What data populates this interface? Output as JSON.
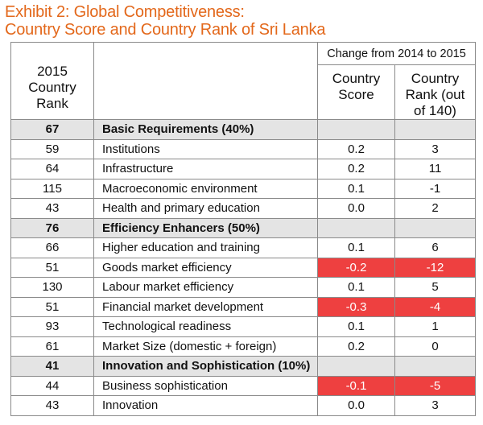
{
  "title": {
    "line1": "Exhibit 2: Global Competitiveness:",
    "line2": "Country Score and Country Rank of Sri Lanka"
  },
  "table": {
    "header": {
      "rank": [
        "2015",
        "Country",
        "Rank"
      ],
      "change_group": "Change from 2014 to 2015",
      "score": [
        "Country",
        "Score"
      ],
      "country_rank": [
        "Country",
        "Rank (out",
        "of 140)"
      ]
    },
    "rows": [
      {
        "rank": "67",
        "name": "Basic Requirements (40%)",
        "score": "",
        "change": "",
        "section": true
      },
      {
        "rank": "59",
        "name": "Institutions",
        "score": "0.2",
        "change": "3"
      },
      {
        "rank": "64",
        "name": "Infrastructure",
        "score": "0.2",
        "change": "11"
      },
      {
        "rank": "115",
        "name": "Macroeconomic environment",
        "score": "0.1",
        "change": "-1"
      },
      {
        "rank": "43",
        "name": "Health and primary education",
        "score": "0.0",
        "change": "2"
      },
      {
        "rank": "76",
        "name": "Efficiency Enhancers (50%)",
        "score": "",
        "change": "",
        "section": true
      },
      {
        "rank": "66",
        "name": "Higher education and training",
        "score": "0.1",
        "change": "6"
      },
      {
        "rank": "51",
        "name": "Goods market efficiency",
        "score": "-0.2",
        "change": "-12",
        "highlight": true
      },
      {
        "rank": "130",
        "name": "Labour market efficiency",
        "score": "0.1",
        "change": "5"
      },
      {
        "rank": "51",
        "name": "Financial market development",
        "score": "-0.3",
        "change": "-4",
        "highlight": true
      },
      {
        "rank": "93",
        "name": "Technological readiness",
        "score": "0.1",
        "change": "1"
      },
      {
        "rank": "61",
        "name": "Market Size (domestic + foreign)",
        "score": "0.2",
        "change": "0"
      },
      {
        "rank": "41",
        "name": "Innovation and Sophistication (10%)",
        "score": "",
        "change": "",
        "section": true
      },
      {
        "rank": "44",
        "name": "Business sophistication",
        "score": "-0.1",
        "change": "-5",
        "highlight": true
      },
      {
        "rank": "43",
        "name": "Innovation",
        "score": "0.0",
        "change": "3"
      }
    ]
  },
  "colors": {
    "title": "#e3681b",
    "highlight": "#ee4040",
    "section_bg": "#e4e4e4",
    "border": "#8a8a8a"
  }
}
